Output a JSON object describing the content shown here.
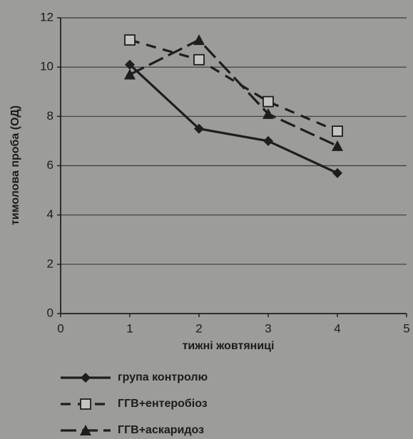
{
  "chart_data": {
    "type": "line",
    "x_label": "тижні жовтяниці",
    "y_label": "тимолова проба (ОД)",
    "x": [
      1,
      2,
      3,
      4
    ],
    "series": [
      {
        "name": "група контролю",
        "color": "#1e1e1e",
        "line_style": "solid",
        "marker": "diamond",
        "values": [
          10.1,
          7.5,
          7.0,
          5.7
        ]
      },
      {
        "name": "ГГВ+ентеробіоз",
        "color": "#1e1e1e",
        "line_style": "dashed",
        "marker": "square",
        "values": [
          11.1,
          10.3,
          8.6,
          7.4
        ]
      },
      {
        "name": "ГГВ+аскаридоз",
        "color": "#1e1e1e",
        "line_style": "longdash",
        "marker": "triangle",
        "values": [
          9.7,
          11.1,
          8.1,
          6.8
        ]
      }
    ],
    "xlim": [
      0,
      5
    ],
    "xticks": [
      0,
      1,
      2,
      3,
      4,
      5
    ],
    "ylim": [
      0,
      12
    ],
    "yticks": [
      0,
      2,
      4,
      6,
      8,
      10,
      12
    ],
    "grid": true,
    "legend": "bottom"
  }
}
